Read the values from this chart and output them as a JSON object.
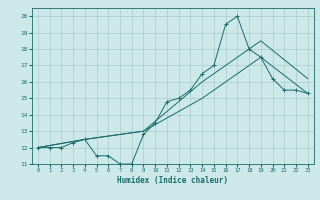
{
  "xlabel": "Humidex (Indice chaleur)",
  "background_color": "#cce8e8",
  "grid_color": "#aacccc",
  "line_color": "#1a6b6b",
  "xlim": [
    -0.5,
    23.5
  ],
  "ylim": [
    11,
    20.5
  ],
  "yticks": [
    11,
    12,
    13,
    14,
    15,
    16,
    17,
    18,
    19,
    20
  ],
  "xticks": [
    0,
    1,
    2,
    3,
    4,
    5,
    6,
    7,
    8,
    9,
    10,
    11,
    12,
    13,
    14,
    15,
    16,
    17,
    18,
    19,
    20,
    21,
    22,
    23
  ],
  "line1_x": [
    0,
    1,
    2,
    3,
    4,
    5,
    6,
    7,
    8,
    9,
    10,
    11,
    12,
    13,
    14,
    15,
    16,
    17,
    18,
    19,
    20,
    21,
    22,
    23
  ],
  "line1_y": [
    12,
    12,
    12,
    12.3,
    12.5,
    11.5,
    11.5,
    11,
    11,
    12.8,
    13.5,
    14.8,
    15,
    15.5,
    16.5,
    17,
    19.5,
    20,
    18,
    17.5,
    16.2,
    15.5,
    15.5,
    15.3
  ],
  "line2_x": [
    0,
    4,
    9,
    14,
    19,
    23
  ],
  "line2_y": [
    12,
    12.5,
    13,
    15,
    17.5,
    15.3
  ],
  "line3_x": [
    0,
    4,
    9,
    14,
    19,
    23
  ],
  "line3_y": [
    12,
    12.5,
    13,
    16,
    18.5,
    16.2
  ]
}
